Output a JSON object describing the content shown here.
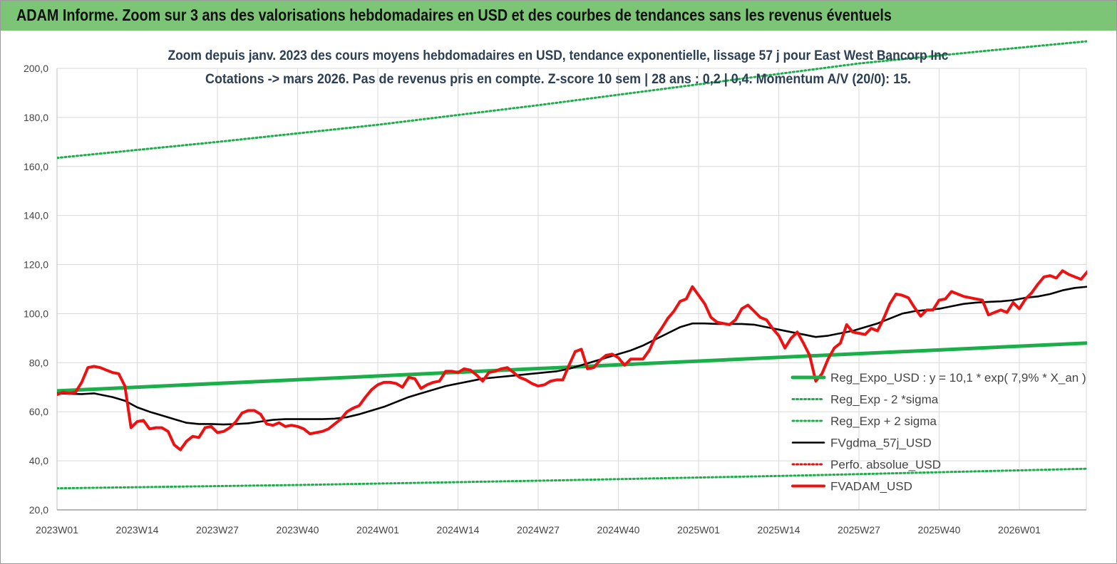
{
  "header": {
    "title": "ADAM Informe. Zoom sur 3 ans des valorisations hebdomadaires en USD et des courbes de tendances sans les revenus éventuels"
  },
  "colors": {
    "banner": "#7cc576",
    "trend": "#1cae4a",
    "sigma": "#1cae4a",
    "gdma": "#000000",
    "perfo": "#e01010",
    "fvadam": "#ee1111",
    "grid": "#d9d9d9"
  },
  "chart_data": {
    "type": "line",
    "title_lines": [
      "Zoom depuis janv. 2023 des cours moyens hebdomadaires en USD, tendance exponentielle, lissage 57 j pour East West Bancorp Inc",
      "Cotations -> mars 2026. Pas de revenus pris en compte. Z-score 10 sem  | 28 ans : 0,2 | 0,4. Momentum A/V (20/0): 15."
    ],
    "x_ticks": [
      "2023W01",
      "2023W14",
      "2023W27",
      "2023W40",
      "2024W01",
      "2024W14",
      "2024W27",
      "2024W40",
      "2025W01",
      "2025W14",
      "2025W27",
      "2025W40",
      "2026W01"
    ],
    "x_range_weeks": [
      0,
      171
    ],
    "y_ticks": [
      "20,0",
      "40,0",
      "60,0",
      "80,0",
      "100,0",
      "120,0",
      "140,0",
      "160,0",
      "180,0",
      "200,0"
    ],
    "ylim": [
      20,
      200
    ],
    "grid": true,
    "legend_position": "bottom-right",
    "series": [
      {
        "name": "Reg_Expo_USD : y = 10,1 * exp( 7,9% *  X_an )",
        "style": "solid-thick",
        "color": "#1cae4a",
        "points": [
          [
            0,
            68.5
          ],
          [
            171,
            88.5
          ]
        ]
      },
      {
        "name": "Reg_Exp - 2 *sigma",
        "style": "dotted",
        "color": "#1cae4a",
        "points": [
          [
            0,
            28.8
          ],
          [
            40,
            30.2
          ],
          [
            80,
            32.0
          ],
          [
            120,
            34.0
          ],
          [
            171,
            37.0
          ]
        ]
      },
      {
        "name": "Reg_Exp + 2 sigma",
        "style": "dotted",
        "color": "#1cae4a",
        "points": [
          [
            0,
            163.5
          ],
          [
            26,
            170.0
          ],
          [
            52,
            177.0
          ],
          [
            78,
            185.0
          ],
          [
            104,
            193.5
          ],
          [
            130,
            202
          ],
          [
            150,
            207
          ],
          [
            171,
            212
          ]
        ]
      },
      {
        "name": "FVgdma_57j_USD",
        "style": "solid",
        "color": "#000000",
        "points": [
          [
            0,
            67.5
          ],
          [
            4,
            67.2
          ],
          [
            6,
            67.5
          ],
          [
            9,
            66
          ],
          [
            11,
            64.5
          ],
          [
            13,
            61.8
          ],
          [
            15,
            60
          ],
          [
            17,
            58.5
          ],
          [
            19,
            57
          ],
          [
            21,
            55.5
          ],
          [
            23,
            55
          ],
          [
            25,
            55
          ],
          [
            27,
            54.8
          ],
          [
            29,
            55
          ],
          [
            31,
            55.3
          ],
          [
            33,
            56
          ],
          [
            35,
            56.7
          ],
          [
            37,
            57
          ],
          [
            39,
            57
          ],
          [
            41,
            57
          ],
          [
            43,
            57
          ],
          [
            45,
            57.2
          ],
          [
            47,
            57.8
          ],
          [
            49,
            59
          ],
          [
            51,
            60.5
          ],
          [
            53,
            62
          ],
          [
            55,
            64
          ],
          [
            57,
            66
          ],
          [
            59,
            67.5
          ],
          [
            61,
            69
          ],
          [
            63,
            70.5
          ],
          [
            65,
            71.5
          ],
          [
            67,
            72.5
          ],
          [
            69,
            73.5
          ],
          [
            71,
            74
          ],
          [
            73,
            74.5
          ],
          [
            75,
            75
          ],
          [
            77,
            75.5
          ],
          [
            79,
            76
          ],
          [
            81,
            76.5
          ],
          [
            83,
            77.5
          ],
          [
            85,
            79
          ],
          [
            87,
            80.5
          ],
          [
            89,
            82
          ],
          [
            91,
            83.5
          ],
          [
            93,
            85
          ],
          [
            95,
            87
          ],
          [
            97,
            89.5
          ],
          [
            99,
            92
          ],
          [
            101,
            94.5
          ],
          [
            103,
            96
          ],
          [
            105,
            96
          ],
          [
            107,
            95.8
          ],
          [
            109,
            95.8
          ],
          [
            111,
            95.8
          ],
          [
            113,
            95.5
          ],
          [
            115,
            94.5
          ],
          [
            117,
            93.5
          ],
          [
            119,
            92.5
          ],
          [
            121,
            91.5
          ],
          [
            123,
            90.5
          ],
          [
            125,
            91
          ],
          [
            127,
            92
          ],
          [
            129,
            93
          ],
          [
            131,
            94.5
          ],
          [
            133,
            96
          ],
          [
            135,
            98
          ],
          [
            137,
            100
          ],
          [
            139,
            101
          ],
          [
            141,
            101.5
          ],
          [
            143,
            102
          ],
          [
            145,
            103
          ],
          [
            147,
            104
          ],
          [
            149,
            104.5
          ],
          [
            151,
            104.8
          ],
          [
            153,
            105
          ],
          [
            155,
            105.5
          ],
          [
            157,
            106.5
          ],
          [
            159,
            107
          ],
          [
            161,
            108
          ],
          [
            163,
            109.5
          ],
          [
            165,
            110.5
          ],
          [
            167,
            111
          ],
          [
            169,
            111
          ],
          [
            171,
            111
          ],
          [
            173,
            110.2
          ],
          [
            175,
            109.5
          ],
          [
            177,
            108.5
          ],
          [
            179,
            108.3
          ]
        ]
      },
      {
        "name": "Perfo. absolue_USD",
        "style": "dotted",
        "color": "#e01010",
        "points": []
      },
      {
        "name": "FVADAM_USD",
        "style": "solid-thick",
        "color": "#ee1111",
        "points": [
          [
            0,
            67
          ],
          [
            1,
            68
          ],
          [
            2,
            67.5
          ],
          [
            3,
            68
          ],
          [
            4,
            72
          ],
          [
            5,
            78
          ],
          [
            6,
            78.5
          ],
          [
            7,
            78
          ],
          [
            8,
            77
          ],
          [
            9,
            76
          ],
          [
            10,
            75.5
          ],
          [
            11,
            70.5
          ],
          [
            12,
            53.5
          ],
          [
            13,
            56
          ],
          [
            14,
            56.5
          ],
          [
            15,
            53
          ],
          [
            16,
            53.5
          ],
          [
            17,
            53.5
          ],
          [
            18,
            52
          ],
          [
            19,
            46.5
          ],
          [
            20,
            44.5
          ],
          [
            21,
            48
          ],
          [
            22,
            50
          ],
          [
            23,
            49.5
          ],
          [
            24,
            53.5
          ],
          [
            25,
            54
          ],
          [
            26,
            51.5
          ],
          [
            27,
            52
          ],
          [
            28,
            53.5
          ],
          [
            29,
            56
          ],
          [
            30,
            59.5
          ],
          [
            31,
            60.5
          ],
          [
            32,
            60.5
          ],
          [
            33,
            59
          ],
          [
            34,
            55
          ],
          [
            35,
            54.5
          ],
          [
            36,
            55.5
          ],
          [
            37,
            54
          ],
          [
            38,
            54.5
          ],
          [
            39,
            54
          ],
          [
            40,
            53
          ],
          [
            41,
            51
          ],
          [
            42,
            51.5
          ],
          [
            43,
            52
          ],
          [
            44,
            53
          ],
          [
            45,
            55
          ],
          [
            46,
            57
          ],
          [
            47,
            60
          ],
          [
            48,
            61.5
          ],
          [
            49,
            62.5
          ],
          [
            50,
            66
          ],
          [
            51,
            69
          ],
          [
            52,
            71
          ],
          [
            53,
            72
          ],
          [
            54,
            72
          ],
          [
            55,
            71.5
          ],
          [
            56,
            70
          ],
          [
            57,
            74
          ],
          [
            58,
            73.5
          ],
          [
            59,
            69.5
          ],
          [
            60,
            71
          ],
          [
            61,
            72
          ],
          [
            62,
            72.5
          ],
          [
            63,
            76.5
          ],
          [
            64,
            76.5
          ],
          [
            65,
            76
          ],
          [
            66,
            77.5
          ],
          [
            67,
            77
          ],
          [
            68,
            75
          ],
          [
            69,
            72.5
          ],
          [
            70,
            76
          ],
          [
            71,
            76.5
          ],
          [
            72,
            77.5
          ],
          [
            73,
            78
          ],
          [
            74,
            76
          ],
          [
            75,
            74
          ],
          [
            76,
            73
          ],
          [
            77,
            71.5
          ],
          [
            78,
            70.5
          ],
          [
            79,
            71
          ],
          [
            80,
            72.5
          ],
          [
            81,
            73
          ],
          [
            82,
            73
          ],
          [
            83,
            79
          ],
          [
            84,
            84.5
          ],
          [
            85,
            85.5
          ],
          [
            86,
            77.5
          ],
          [
            87,
            78
          ],
          [
            88,
            81
          ],
          [
            89,
            83
          ],
          [
            90,
            83.5
          ],
          [
            91,
            82
          ],
          [
            92,
            79
          ],
          [
            93,
            81.5
          ],
          [
            94,
            81.5
          ],
          [
            95,
            81.5
          ],
          [
            96,
            85
          ],
          [
            97,
            90.5
          ],
          [
            98,
            94
          ],
          [
            99,
            98
          ],
          [
            100,
            101
          ],
          [
            101,
            105
          ],
          [
            102,
            106
          ],
          [
            103,
            111
          ],
          [
            104,
            107.5
          ],
          [
            105,
            104
          ],
          [
            106,
            98.5
          ],
          [
            107,
            96.5
          ],
          [
            108,
            96
          ],
          [
            109,
            95.5
          ],
          [
            110,
            97.5
          ],
          [
            111,
            102
          ],
          [
            112,
            103.5
          ],
          [
            113,
            101
          ],
          [
            114,
            98.5
          ],
          [
            115,
            97.5
          ],
          [
            116,
            94
          ],
          [
            117,
            91
          ],
          [
            118,
            86
          ],
          [
            119,
            90
          ],
          [
            120,
            92.5
          ],
          [
            121,
            88
          ],
          [
            122,
            83
          ],
          [
            123,
            72.5
          ],
          [
            124,
            75.5
          ],
          [
            125,
            81.5
          ],
          [
            126,
            86
          ],
          [
            127,
            88
          ],
          [
            128,
            95.5
          ],
          [
            129,
            92.5
          ],
          [
            130,
            92
          ],
          [
            131,
            91.5
          ],
          [
            132,
            94
          ],
          [
            133,
            93
          ],
          [
            134,
            98
          ],
          [
            135,
            104
          ],
          [
            136,
            108
          ],
          [
            137,
            107.5
          ],
          [
            138,
            106.5
          ],
          [
            139,
            102.5
          ],
          [
            140,
            99
          ],
          [
            141,
            101.5
          ],
          [
            142,
            101.5
          ],
          [
            143,
            105.5
          ],
          [
            144,
            106
          ],
          [
            145,
            109
          ],
          [
            146,
            108
          ],
          [
            147,
            107
          ],
          [
            148,
            106.5
          ],
          [
            149,
            106
          ],
          [
            150,
            105.5
          ],
          [
            151,
            99.5
          ],
          [
            152,
            100.5
          ],
          [
            153,
            101.5
          ],
          [
            154,
            100.5
          ],
          [
            155,
            104.5
          ],
          [
            156,
            102
          ],
          [
            157,
            106
          ],
          [
            158,
            108.5
          ],
          [
            159,
            112
          ],
          [
            160,
            115
          ],
          [
            161,
            115.5
          ],
          [
            162,
            114.5
          ],
          [
            163,
            117.5
          ],
          [
            164,
            116
          ],
          [
            165,
            115
          ],
          [
            166,
            114
          ],
          [
            167,
            117
          ],
          [
            168,
            120
          ],
          [
            169,
            120
          ],
          [
            170,
            115
          ],
          [
            171,
            109.5
          ],
          [
            172,
            106
          ],
          [
            173,
            105
          ],
          [
            174,
            106.5
          ]
        ]
      }
    ]
  }
}
